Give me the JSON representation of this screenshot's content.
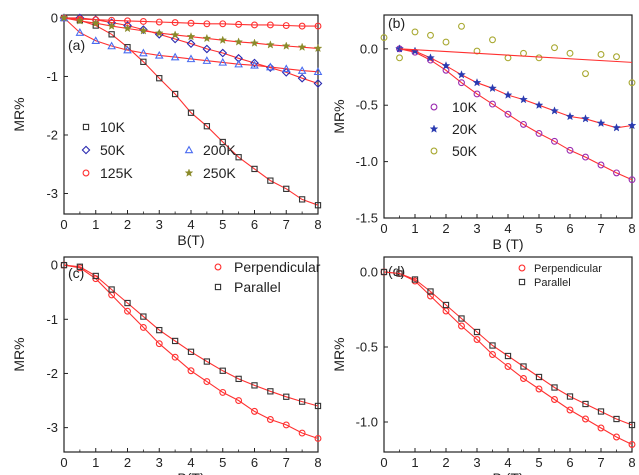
{
  "chart_data": [
    {
      "type": "scatter",
      "panel_label": "(a)",
      "xlabel": "B(T)",
      "ylabel": "MR%",
      "xlim": [
        0,
        8
      ],
      "ylim": [
        -3.35,
        0.05
      ],
      "xticks": [
        "0",
        "1",
        "2",
        "3",
        "4",
        "5",
        "6",
        "7",
        "8"
      ],
      "yticks": [
        "0",
        "-1",
        "-2",
        "-3"
      ],
      "legend_position": "bottom-left",
      "fit_line_color": "#ff3030",
      "series": [
        {
          "name": "10K",
          "marker": "square",
          "color": "#333333",
          "x": [
            0,
            0.5,
            1,
            1.5,
            2,
            2.5,
            3,
            3.5,
            4,
            4.5,
            5,
            5.5,
            6,
            6.5,
            7,
            7.5,
            8
          ],
          "y": [
            0,
            -0.04,
            -0.13,
            -0.28,
            -0.5,
            -0.75,
            -1.03,
            -1.3,
            -1.62,
            -1.85,
            -2.12,
            -2.38,
            -2.58,
            -2.78,
            -2.92,
            -3.1,
            -3.2
          ]
        },
        {
          "name": "50K",
          "marker": "diamond",
          "color": "#2a2ab0",
          "x": [
            0,
            0.5,
            1,
            1.5,
            2,
            2.5,
            3,
            3.5,
            4,
            4.5,
            5,
            5.5,
            6,
            6.5,
            7,
            7.5,
            8
          ],
          "y": [
            0,
            0,
            -0.03,
            -0.08,
            -0.13,
            -0.2,
            -0.28,
            -0.36,
            -0.44,
            -0.53,
            -0.6,
            -0.69,
            -0.77,
            -0.85,
            -0.93,
            -1.03,
            -1.12
          ]
        },
        {
          "name": "125K",
          "marker": "circle",
          "color": "#ff3030",
          "x": [
            0,
            0.5,
            1,
            1.5,
            2,
            2.5,
            3,
            3.5,
            4,
            4.5,
            5,
            5.5,
            6,
            6.5,
            7,
            7.5,
            8
          ],
          "y": [
            0,
            -0.02,
            -0.03,
            -0.04,
            -0.05,
            -0.06,
            -0.07,
            -0.08,
            -0.09,
            -0.1,
            -0.1,
            -0.11,
            -0.12,
            -0.12,
            -0.13,
            -0.14,
            -0.14
          ]
        },
        {
          "name": "200K",
          "marker": "triangle",
          "color": "#4a6cf0",
          "x": [
            0,
            0.5,
            1,
            1.5,
            2,
            2.5,
            3,
            3.5,
            4,
            4.5,
            5,
            5.5,
            6,
            6.5,
            7,
            7.5,
            8
          ],
          "y": [
            0,
            -0.25,
            -0.39,
            -0.48,
            -0.55,
            -0.6,
            -0.64,
            -0.67,
            -0.7,
            -0.73,
            -0.76,
            -0.79,
            -0.81,
            -0.84,
            -0.87,
            -0.9,
            -0.92
          ]
        },
        {
          "name": "250K",
          "marker": "star",
          "color": "#8a8a2a",
          "x": [
            0,
            0.5,
            1,
            1.5,
            2,
            2.5,
            3,
            3.5,
            4,
            4.5,
            5,
            5.5,
            6,
            6.5,
            7,
            7.5,
            8
          ],
          "y": [
            0,
            -0.05,
            -0.09,
            -0.14,
            -0.18,
            -0.22,
            -0.26,
            -0.29,
            -0.32,
            -0.35,
            -0.38,
            -0.41,
            -0.43,
            -0.46,
            -0.48,
            -0.5,
            -0.52
          ]
        }
      ]
    },
    {
      "type": "scatter",
      "panel_label": "(b)",
      "xlabel": "B (T)",
      "ylabel": "MR%",
      "xlim": [
        0,
        8
      ],
      "ylim": [
        -1.5,
        0.3
      ],
      "xticks": [
        "0",
        "1",
        "2",
        "3",
        "4",
        "5",
        "6",
        "7",
        "8"
      ],
      "yticks": [
        "0.0",
        "-0.5",
        "-1.0",
        "-1.5"
      ],
      "legend_position": "center-left",
      "fit_line_color": "#ff3030",
      "series": [
        {
          "name": "10K",
          "marker": "circle",
          "color": "#9a2ab0",
          "x": [
            0.5,
            1,
            1.5,
            2,
            2.5,
            3,
            3.5,
            4,
            4.5,
            5,
            5.5,
            6,
            6.5,
            7,
            7.5,
            8
          ],
          "y": [
            0,
            -0.03,
            -0.1,
            -0.19,
            -0.3,
            -0.4,
            -0.49,
            -0.58,
            -0.67,
            -0.75,
            -0.82,
            -0.9,
            -0.96,
            -1.03,
            -1.1,
            -1.16
          ]
        },
        {
          "name": "20K",
          "marker": "star",
          "color": "#2a3ab0",
          "x": [
            0.5,
            1,
            1.5,
            2,
            2.5,
            3,
            3.5,
            4,
            4.5,
            5,
            5.5,
            6,
            6.5,
            7,
            7.5,
            8
          ],
          "y": [
            0,
            -0.02,
            -0.08,
            -0.15,
            -0.23,
            -0.3,
            -0.35,
            -0.41,
            -0.45,
            -0.5,
            -0.55,
            -0.6,
            -0.62,
            -0.66,
            -0.7,
            -0.68
          ]
        },
        {
          "name": "50K",
          "marker": "circle",
          "color": "#a8a830",
          "x": [
            0,
            0.5,
            1,
            1.5,
            2,
            2.5,
            3,
            3.5,
            4,
            4.5,
            5,
            5.5,
            6,
            6.5,
            7,
            7.5,
            8
          ],
          "y": [
            0.1,
            -0.08,
            0.15,
            0.12,
            0.06,
            0.2,
            -0.02,
            0.08,
            -0.08,
            -0.04,
            -0.08,
            0.01,
            -0.04,
            -0.22,
            -0.05,
            -0.07,
            -0.3
          ]
        }
      ]
    },
    {
      "type": "scatter",
      "panel_label": "(c)",
      "xlabel": "B(T)",
      "ylabel": "MR%",
      "xlim": [
        0,
        8
      ],
      "ylim": [
        -3.45,
        0.15
      ],
      "xticks": [
        "0",
        "1",
        "2",
        "3",
        "4",
        "5",
        "6",
        "7",
        "8"
      ],
      "yticks": [
        "0",
        "-1",
        "-2",
        "-3"
      ],
      "legend_position": "top-right",
      "fit_line_color": "#ff3030",
      "series": [
        {
          "name": "Perpendicular",
          "marker": "circle",
          "color": "#ff3030",
          "x": [
            0,
            0.5,
            1,
            1.5,
            2,
            2.5,
            3,
            3.5,
            4,
            4.5,
            5,
            5.5,
            6,
            6.5,
            7,
            7.5,
            8
          ],
          "y": [
            0,
            -0.05,
            -0.25,
            -0.55,
            -0.85,
            -1.15,
            -1.45,
            -1.7,
            -1.95,
            -2.15,
            -2.35,
            -2.5,
            -2.7,
            -2.85,
            -2.95,
            -3.1,
            -3.2
          ]
        },
        {
          "name": "Parallel",
          "marker": "square",
          "color": "#333333",
          "x": [
            0,
            0.5,
            1,
            1.5,
            2,
            2.5,
            3,
            3.5,
            4,
            4.5,
            5,
            5.5,
            6,
            6.5,
            7,
            7.5,
            8
          ],
          "y": [
            0,
            -0.03,
            -0.2,
            -0.45,
            -0.7,
            -0.95,
            -1.2,
            -1.4,
            -1.6,
            -1.78,
            -1.95,
            -2.1,
            -2.22,
            -2.33,
            -2.43,
            -2.52,
            -2.6
          ]
        }
      ]
    },
    {
      "type": "scatter",
      "panel_label": "(d)",
      "xlabel": "B (T)",
      "ylabel": "MR%",
      "xlim": [
        0,
        8
      ],
      "ylim": [
        -1.2,
        0.1
      ],
      "xticks": [
        "0",
        "1",
        "2",
        "3",
        "4",
        "5",
        "6",
        "7",
        "8"
      ],
      "yticks": [
        "0.0",
        "-0.5",
        "-1.0"
      ],
      "legend_position": "top-right",
      "fit_line_color": "#ff3030",
      "series": [
        {
          "name": "Perpendicular",
          "marker": "circle",
          "color": "#ff3030",
          "x": [
            0,
            0.5,
            1,
            1.5,
            2,
            2.5,
            3,
            3.5,
            4,
            4.5,
            5,
            5.5,
            6,
            6.5,
            7,
            7.5,
            8
          ],
          "y": [
            0,
            -0.01,
            -0.06,
            -0.16,
            -0.26,
            -0.36,
            -0.45,
            -0.55,
            -0.63,
            -0.71,
            -0.78,
            -0.85,
            -0.92,
            -0.98,
            -1.04,
            -1.1,
            -1.15
          ]
        },
        {
          "name": "Parallel",
          "marker": "square",
          "color": "#333333",
          "x": [
            0,
            0.5,
            1,
            1.5,
            2,
            2.5,
            3,
            3.5,
            4,
            4.5,
            5,
            5.5,
            6,
            6.5,
            7,
            7.5,
            8
          ],
          "y": [
            0,
            -0.01,
            -0.05,
            -0.13,
            -0.22,
            -0.31,
            -0.4,
            -0.49,
            -0.56,
            -0.63,
            -0.7,
            -0.77,
            -0.83,
            -0.88,
            -0.93,
            -0.98,
            -1.02
          ]
        }
      ]
    }
  ]
}
